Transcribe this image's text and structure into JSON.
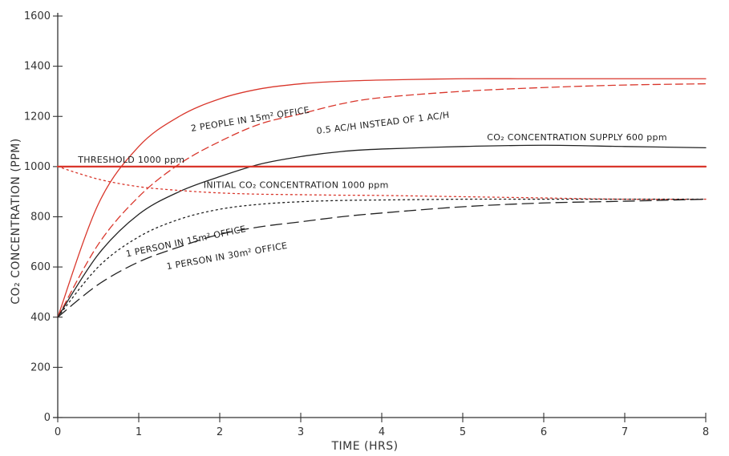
{
  "chart_data": {
    "type": "line",
    "xlabel": "TIME (HRS)",
    "ylabel": "CO₂ CONCENTRATION (PPM)",
    "xlim": [
      0,
      8
    ],
    "ylim": [
      0,
      1600
    ],
    "x_ticks": [
      0,
      1,
      2,
      3,
      4,
      5,
      6,
      7,
      8
    ],
    "y_ticks": [
      0,
      200,
      400,
      600,
      800,
      1000,
      1200,
      1400,
      1600
    ],
    "grid": false,
    "legend": "none",
    "x": [
      0,
      0.5,
      1,
      1.5,
      2,
      2.5,
      3,
      3.5,
      4,
      5,
      6,
      7,
      8
    ],
    "series": [
      {
        "name": "2 people in 15m² office",
        "color": "#d9362b",
        "dash": "solid",
        "values": [
          400,
          850,
          1080,
          1200,
          1270,
          1310,
          1330,
          1340,
          1345,
          1350,
          1350,
          1350,
          1350
        ]
      },
      {
        "name": "0.5 AC/H instead of 1 AC/H",
        "color": "#d9362b",
        "dash": "dashed",
        "values": [
          400,
          690,
          880,
          1010,
          1100,
          1170,
          1210,
          1250,
          1275,
          1300,
          1315,
          1325,
          1330
        ]
      },
      {
        "name": "CO₂ concentration supply 600 ppm",
        "color": "#222222",
        "dash": "solid",
        "values": [
          400,
          650,
          810,
          900,
          960,
          1010,
          1040,
          1060,
          1070,
          1080,
          1085,
          1080,
          1075
        ]
      },
      {
        "name": "Threshold 1000 ppm",
        "color": "#d9362b",
        "dash": "solid",
        "width": 2.2,
        "values": [
          1000,
          1000,
          1000,
          1000,
          1000,
          1000,
          1000,
          1000,
          1000,
          1000,
          1000,
          1000,
          1000
        ]
      },
      {
        "name": "Initial CO₂ concentration 1000 ppm",
        "color": "#d9362b",
        "dash": "dotted",
        "values": [
          1000,
          950,
          920,
          905,
          895,
          890,
          888,
          886,
          885,
          880,
          875,
          870,
          870
        ]
      },
      {
        "name": "1 person in 15m² office",
        "color": "#222222",
        "dash": "dotted",
        "values": [
          400,
          600,
          720,
          790,
          830,
          850,
          860,
          865,
          867,
          870,
          870,
          870,
          870
        ]
      },
      {
        "name": "1 person in 30m² office",
        "color": "#222222",
        "dash": "longdash",
        "values": [
          400,
          530,
          620,
          680,
          730,
          760,
          780,
          800,
          815,
          840,
          855,
          862,
          870
        ]
      }
    ],
    "annotations": [
      {
        "text": "THRESHOLD 1000 ppm",
        "x": 0.25,
        "y": 1015,
        "angle": 0
      },
      {
        "text": "2 PEOPLE IN 15m² OFFICE",
        "x": 1.65,
        "y": 1140,
        "angle": -9
      },
      {
        "text": "0.5 AC/H INSTEAD OF 1 AC/H",
        "x": 3.2,
        "y": 1130,
        "angle": -7
      },
      {
        "text": "CO₂ CONCENTRATION SUPPLY 600 ppm",
        "x": 5.3,
        "y": 1105,
        "angle": 0
      },
      {
        "text": "INITIAL CO₂ CONCENTRATION    1000 ppm",
        "x": 1.8,
        "y": 915,
        "angle": 0
      },
      {
        "text": "1 PERSON IN 15m² OFFICE",
        "x": 0.85,
        "y": 640,
        "angle": -12
      },
      {
        "text": "1 PERSON IN 30m² OFFICE",
        "x": 1.35,
        "y": 590,
        "angle": -10
      }
    ]
  }
}
